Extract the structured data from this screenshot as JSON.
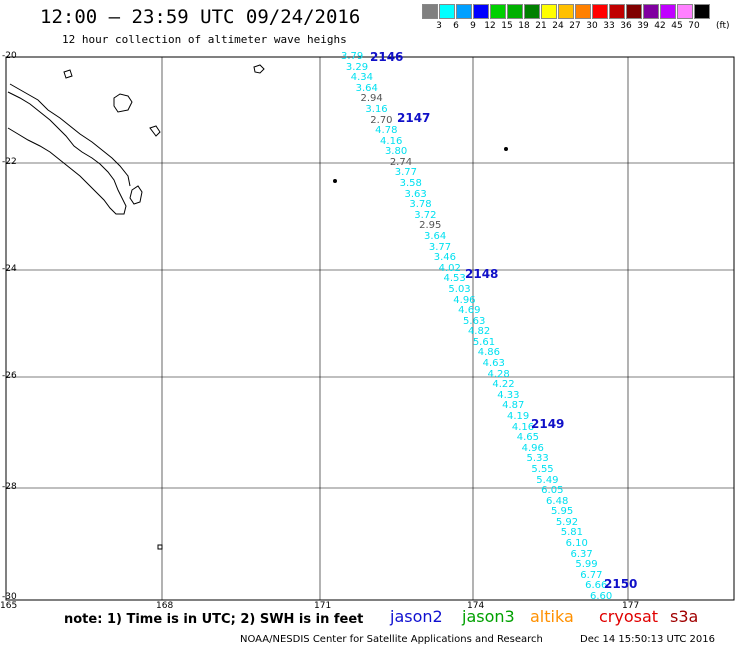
{
  "title": "12:00 – 23:59 UTC 09/24/2016",
  "subtitle": "12 hour collection of altimeter wave heighs",
  "scale": {
    "unit": "(ft)",
    "colors": [
      "#808080",
      "#00ffff",
      "#00a0ff",
      "#0000ff",
      "#00d000",
      "#00b000",
      "#008000",
      "#ffff00",
      "#ffc000",
      "#ff8000",
      "#ff0000",
      "#c00000",
      "#800000",
      "#8000a0",
      "#c000ff",
      "#ff80ff",
      "#000000"
    ],
    "labels": [
      "3",
      "6",
      "9",
      "12",
      "15",
      "18",
      "21",
      "24",
      "27",
      "30",
      "33",
      "36",
      "39",
      "42",
      "45",
      "70"
    ]
  },
  "lat_labels": [
    "-20",
    "-22",
    "-24",
    "-26",
    "-28",
    "-30"
  ],
  "lon_labels": [
    "165",
    "168",
    "171",
    "174",
    "177"
  ],
  "track": {
    "colors": {
      "cyan": "#00e0f0",
      "gray": "#555555"
    },
    "values": [
      "3.79",
      "3.29",
      "4.34",
      "3.64",
      "2.94",
      "3.16",
      "2.70",
      "4.78",
      "4.16",
      "3.80",
      "2.74",
      "3.77",
      "3.58",
      "3.63",
      "3.78",
      "3.72",
      "2.95",
      "3.64",
      "3.77",
      "3.46",
      "4.02",
      "4.53",
      "5.03",
      "4.96",
      "4.69",
      "5.63",
      "4.82",
      "5.61",
      "4.86",
      "4.63",
      "4.28",
      "4.22",
      "4.33",
      "4.87",
      "4.19",
      "4.16",
      "4.65",
      "4.96",
      "5.33",
      "5.55",
      "5.49",
      "6.05",
      "6.48",
      "5.95",
      "5.92",
      "5.81",
      "6.10",
      "6.37",
      "5.99",
      "6.77",
      "6.66",
      "6.60"
    ],
    "value_colors": [
      "cyan",
      "cyan",
      "cyan",
      "cyan",
      "gray",
      "cyan",
      "gray",
      "cyan",
      "cyan",
      "cyan",
      "gray",
      "cyan",
      "cyan",
      "cyan",
      "cyan",
      "cyan",
      "gray",
      "cyan",
      "cyan",
      "cyan",
      "cyan",
      "cyan",
      "cyan",
      "cyan",
      "cyan",
      "cyan",
      "cyan",
      "cyan",
      "cyan",
      "cyan",
      "cyan",
      "cyan",
      "cyan",
      "cyan",
      "cyan",
      "cyan",
      "cyan",
      "cyan",
      "cyan",
      "cyan",
      "cyan",
      "cyan",
      "cyan",
      "cyan",
      "cyan",
      "cyan",
      "cyan",
      "cyan",
      "cyan",
      "cyan",
      "cyan",
      "cyan"
    ]
  },
  "orbits": [
    "2146",
    "2147",
    "2148",
    "2149",
    "2150"
  ],
  "note": "note: 1) Time is in UTC; 2) SWH is in feet",
  "satellites": [
    {
      "name": "jason2",
      "color": "#1010d0"
    },
    {
      "name": "jason3",
      "color": "#00a000"
    },
    {
      "name": "altika",
      "color": "#ff9000"
    },
    {
      "name": "cryosat",
      "color": "#e00000"
    },
    {
      "name": "s3a",
      "color": "#a00000"
    }
  ],
  "credit": "NOAA/NESDIS Center for Satellite Applications and Research",
  "timestamp": "Dec 14 15:50:13 UTC 2016"
}
